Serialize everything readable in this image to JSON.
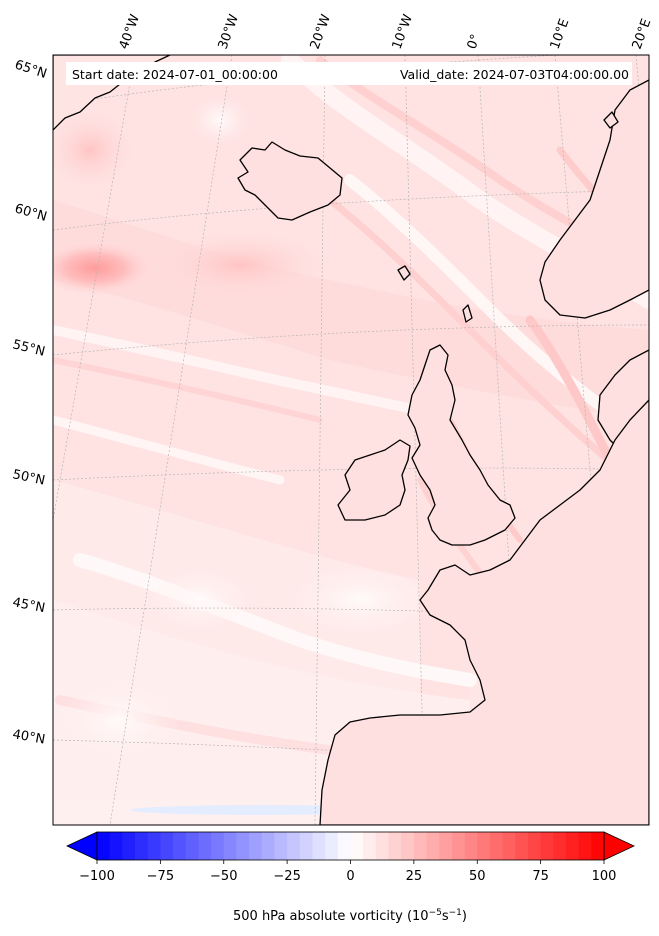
{
  "header": {
    "start_label": "Start date: 2024-07-01_00:00:00",
    "valid_label": "Valid_date: 2024-07-03T04:00:00.00"
  },
  "map": {
    "projection": "Lambert conformal",
    "lon_labels": [
      "40°W",
      "30°W",
      "20°W",
      "10°W",
      "0°",
      "10°E",
      "20°E"
    ],
    "lat_labels": [
      "65°N",
      "60°N",
      "55°N",
      "50°N",
      "45°N",
      "40°N"
    ],
    "field": "500 hPa absolute vorticity",
    "gridlines": true
  },
  "colorbar": {
    "ticks": [
      "−100",
      "−75",
      "−50",
      "−25",
      "0",
      "25",
      "50",
      "75",
      "100"
    ],
    "range": [
      -100,
      100
    ],
    "low_color": "#0000ff",
    "mid_color": "#ffffff",
    "high_color": "#ff0000",
    "label_main": "500 hPa absolute vorticity (10",
    "label_exp1": "−5",
    "label_mid": "s",
    "label_exp2": "−1",
    "label_end": ")"
  },
  "colors": {
    "land_outline": "#000000",
    "background_field": "#ffe3e3"
  }
}
